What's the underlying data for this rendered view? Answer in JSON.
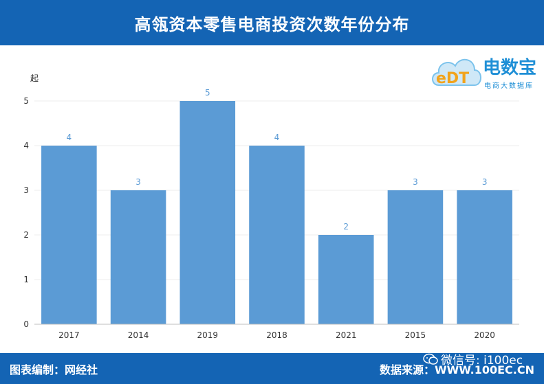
{
  "header": {
    "title": "高瓴资本零售电商投资次数年份分布"
  },
  "logo": {
    "brand": "电数宝",
    "subtitle": "电商大数据库",
    "mark": "eDT"
  },
  "footer": {
    "left": "图表编制：网经社",
    "right": "数据来源：WWW.100EC.CN",
    "wechat": "微信号: i100ec"
  },
  "chart_data": {
    "type": "bar",
    "categories": [
      "2017",
      "2014",
      "2019",
      "2018",
      "2021",
      "2015",
      "2020"
    ],
    "values": [
      4,
      3,
      5,
      4,
      2,
      3,
      3
    ],
    "ylabel": "起",
    "ylim": [
      0,
      5
    ],
    "yticks": [
      0,
      1,
      2,
      3,
      4,
      5
    ],
    "grid": true,
    "bar_color": "#5b9bd5",
    "label_color": "#5b9bd5"
  },
  "colors": {
    "brand_blue": "#1464b4"
  }
}
